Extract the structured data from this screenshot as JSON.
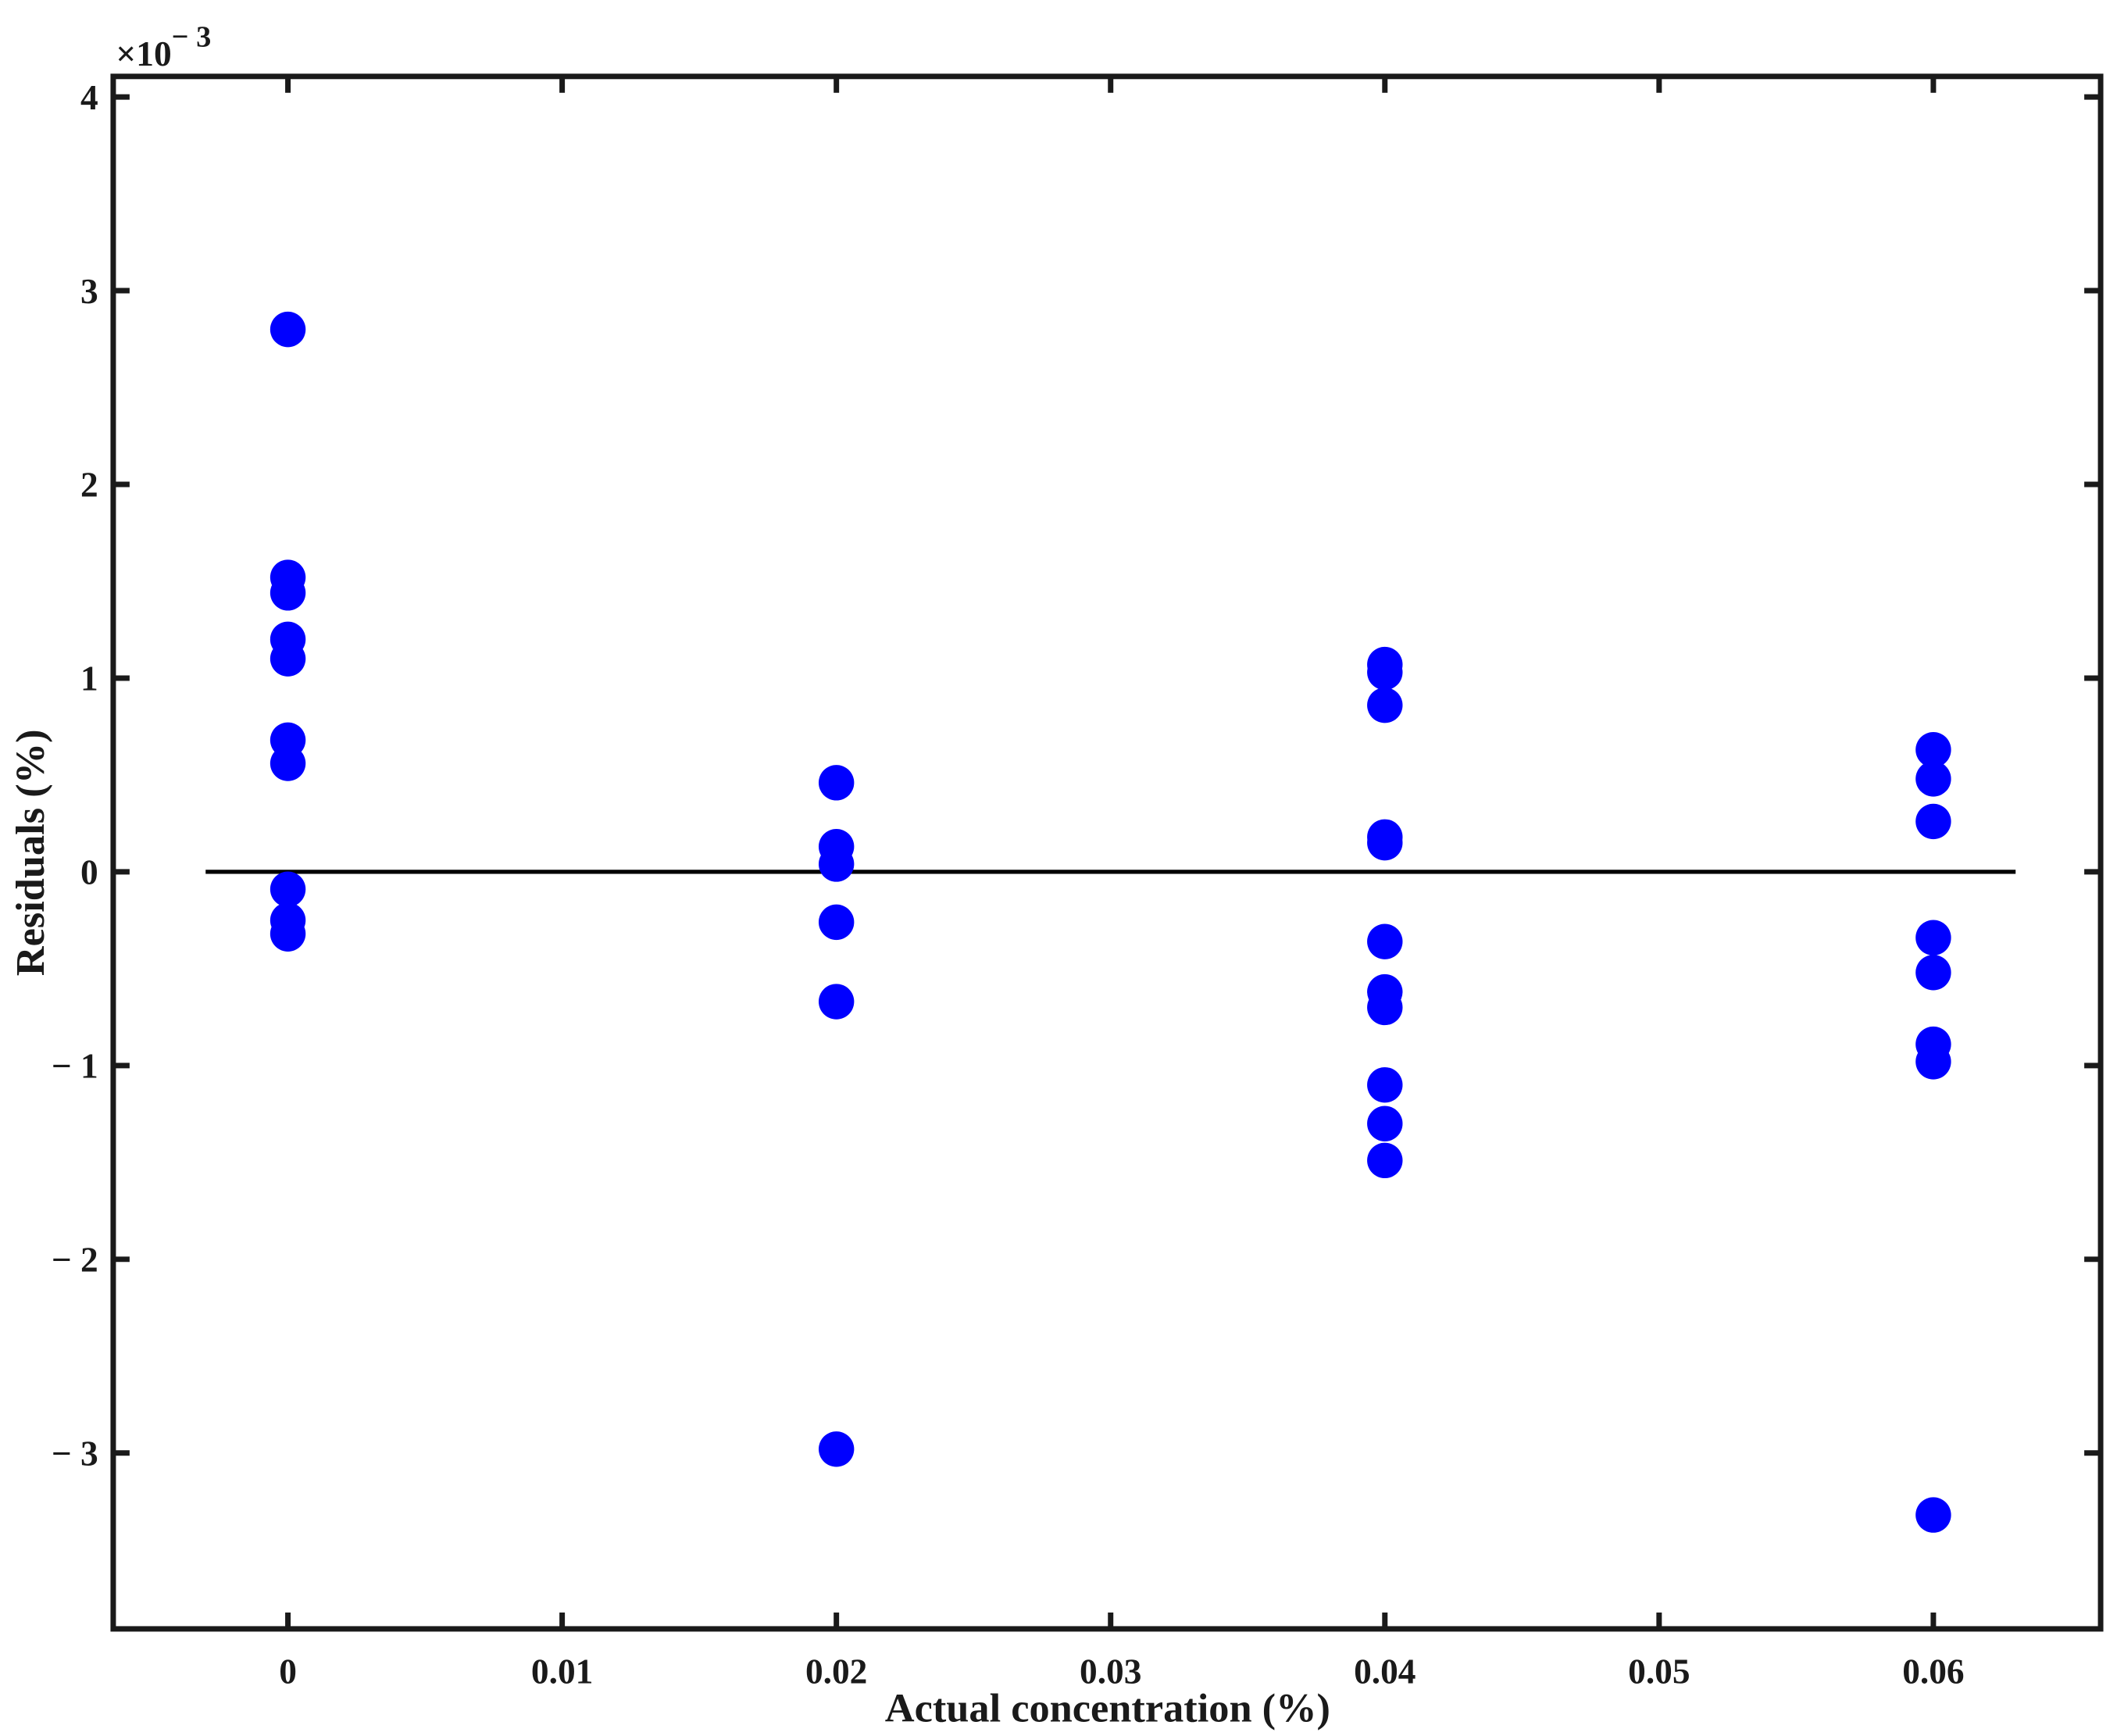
{
  "chart_data": {
    "type": "scatter",
    "xlabel": "Actual concentration (%)",
    "ylabel": "Residuals (%)",
    "y_multiplier": {
      "base": "×10",
      "exponent": "− 3"
    },
    "color": "#0000ff",
    "x": [
      0,
      0,
      0,
      0,
      0,
      0,
      0,
      0,
      0,
      0,
      0.02,
      0.02,
      0.02,
      0.02,
      0.02,
      0.02,
      0.04,
      0.04,
      0.04,
      0.04,
      0.04,
      0.04,
      0.04,
      0.04,
      0.04,
      0.04,
      0.04,
      0.06,
      0.06,
      0.06,
      0.06,
      0.06,
      0.06,
      0.06,
      0.06
    ],
    "values": [
      2.8,
      1.52,
      1.44,
      1.2,
      1.1,
      0.68,
      0.56,
      -0.09,
      -0.25,
      -0.32,
      0.46,
      0.13,
      0.04,
      -0.26,
      -0.67,
      -2.98,
      1.07,
      1.03,
      0.86,
      0.18,
      0.15,
      -0.36,
      -0.62,
      -0.7,
      -1.1,
      -1.3,
      -1.49,
      0.63,
      0.48,
      0.26,
      -0.34,
      -0.52,
      -0.89,
      -0.98,
      -3.32
    ],
    "reference_line": {
      "x": [
        -0.003,
        0.063
      ],
      "y": 0
    },
    "xlim": [
      -0.00637,
      0.0661
    ],
    "ylim": [
      -3.908,
      4.106
    ],
    "xticks": [
      0,
      0.01,
      0.02,
      0.03,
      0.04,
      0.05,
      0.06
    ],
    "yticks": [
      {
        "value": -3,
        "label": "− 3"
      },
      {
        "value": -2,
        "label": "− 2"
      },
      {
        "value": -1,
        "label": "− 1"
      },
      0,
      1,
      2,
      3,
      4
    ],
    "grid": false
  }
}
